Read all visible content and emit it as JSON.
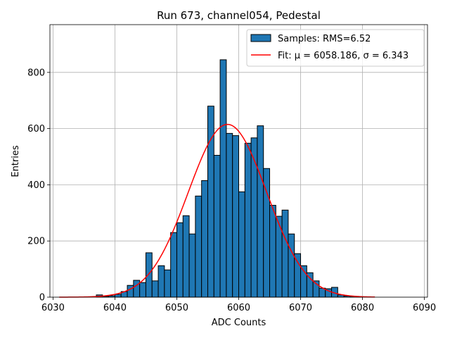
{
  "chart_data": {
    "type": "bar",
    "title": "Run 673, channel054, Pedestal",
    "xlabel": "ADC Counts",
    "ylabel": "Entries",
    "xlim": [
      6029.5,
      6090.5
    ],
    "ylim": [
      0,
      970
    ],
    "xticks": [
      6030,
      6040,
      6050,
      6060,
      6070,
      6080,
      6090
    ],
    "yticks": [
      0,
      200,
      400,
      600,
      800
    ],
    "grid": true,
    "legend_position": "top-right",
    "histogram": {
      "name": "Samples: RMS=6.52",
      "bin_start": 6031,
      "bin_width": 1,
      "counts": [
        0,
        0,
        0,
        0,
        0,
        0,
        8,
        3,
        5,
        10,
        20,
        42,
        60,
        52,
        158,
        58,
        112,
        97,
        230,
        265,
        290,
        225,
        360,
        415,
        680,
        505,
        845,
        583,
        575,
        375,
        548,
        567,
        610,
        458,
        327,
        288,
        310,
        225,
        155,
        112,
        87,
        58,
        32,
        30,
        35,
        8,
        4,
        3,
        1,
        0,
        0
      ]
    },
    "fit": {
      "name": "Fit: μ = 6058.186, σ = 6.343",
      "mu": 6058.186,
      "sigma": 6.343,
      "amplitude": 615,
      "x_range": [
        6031,
        6082
      ]
    },
    "colors": {
      "bar_fill": "#1f77b4",
      "bar_edge": "#000000",
      "fit_line": "#ff0000",
      "grid": "#b0b0b0"
    }
  }
}
